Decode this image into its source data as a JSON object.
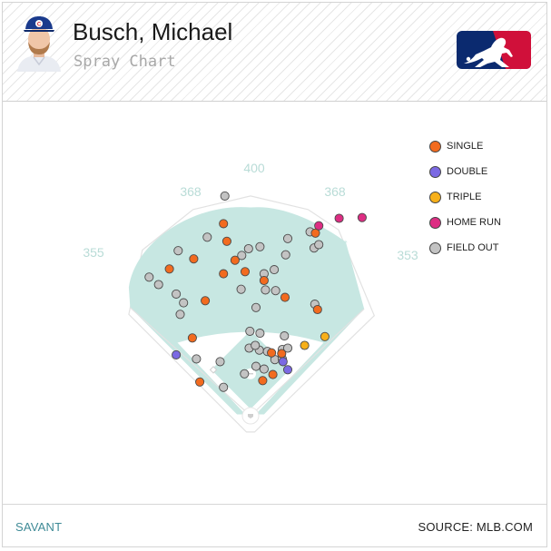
{
  "header": {
    "player_name": "Busch, Michael",
    "subtitle": "Spray Chart",
    "logo": "mlb-logo",
    "avatar": "player-headshot",
    "colors": {
      "mlb_blue": "#0b2a6f",
      "mlb_red": "#d0103a"
    }
  },
  "footer": {
    "left": "SAVANT",
    "right": "SOURCE: MLB.COM"
  },
  "chart_data": {
    "type": "scatter",
    "title": "Spray Chart",
    "field_colors": {
      "grass": "#c7e7e2",
      "infield_dirt": "#ffffff",
      "foul_lines": "#e2e2e2"
    },
    "distance_labels": [
      "355",
      "368",
      "400",
      "368",
      "353"
    ],
    "legend": [
      {
        "name": "SINGLE",
        "color": "#f26b1f"
      },
      {
        "name": "DOUBLE",
        "color": "#7b69e3"
      },
      {
        "name": "TRIPLE",
        "color": "#f7b01a"
      },
      {
        "name": "HOME RUN",
        "color": "#dd2d83"
      },
      {
        "name": "FIELD OUT",
        "color": "#c3c3c3"
      }
    ],
    "series": [
      {
        "name": "SINGLE",
        "points": [
          [
            -120,
            217
          ],
          [
            -40,
            284
          ],
          [
            -67,
            170
          ],
          [
            -86,
            115
          ],
          [
            -75,
            50
          ],
          [
            -84,
            232
          ],
          [
            -23,
            230
          ],
          [
            -40,
            210
          ],
          [
            -8,
            213
          ],
          [
            -35,
            258
          ],
          [
            51,
            175
          ],
          [
            20,
            200
          ],
          [
            18,
            52
          ],
          [
            46,
            92
          ],
          [
            31,
            93
          ],
          [
            33,
            61
          ],
          [
            99,
            157
          ],
          [
            96,
            270
          ]
        ]
      },
      {
        "name": "DOUBLE",
        "points": [
          [
            -110,
            90
          ],
          [
            48,
            80
          ],
          [
            55,
            68
          ]
        ]
      },
      {
        "name": "TRIPLE",
        "points": [
          [
            80,
            104
          ],
          [
            110,
            117
          ]
        ]
      },
      {
        "name": "HOME RUN",
        "points": [
          [
            101,
            281
          ],
          [
            131,
            292
          ],
          [
            165,
            293
          ]
        ]
      },
      {
        "name": "FIELD OUT",
        "points": [
          [
            -150,
            205
          ],
          [
            -107,
            244
          ],
          [
            -110,
            180
          ],
          [
            -99,
            167
          ],
          [
            -136,
            194
          ],
          [
            -38,
            325
          ],
          [
            -104,
            150
          ],
          [
            -80,
            84
          ],
          [
            -40,
            42
          ],
          [
            -14,
            187
          ],
          [
            -13,
            237
          ],
          [
            -3,
            247
          ],
          [
            14,
            250
          ],
          [
            55,
            262
          ],
          [
            52,
            238
          ],
          [
            35,
            216
          ],
          [
            20,
            210
          ],
          [
            37,
            185
          ],
          [
            -64,
            264
          ],
          [
            -45,
            80
          ],
          [
            -9,
            62
          ],
          [
            -2,
            100
          ],
          [
            13,
            97
          ],
          [
            20,
            69
          ],
          [
            25,
            95
          ],
          [
            7,
            104
          ],
          [
            14,
            122
          ],
          [
            47,
            98
          ],
          [
            36,
            83
          ],
          [
            50,
            118
          ],
          [
            47,
            84
          ],
          [
            55,
            100
          ],
          [
            -1,
            125
          ],
          [
            8,
            160
          ],
          [
            22,
            186
          ],
          [
            88,
            272
          ],
          [
            94,
            248
          ],
          [
            101,
            253
          ],
          [
            95,
            165
          ],
          [
            8,
            73
          ]
        ]
      }
    ]
  }
}
